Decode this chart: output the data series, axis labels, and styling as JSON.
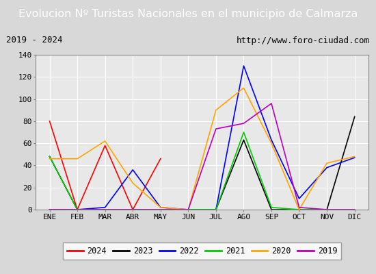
{
  "title": "Evolucion Nº Turistas Nacionales en el municipio de Calmarza",
  "subtitle_left": "2019 - 2024",
  "subtitle_right": "http://www.foro-ciudad.com",
  "months": [
    "ENE",
    "FEB",
    "MAR",
    "ABR",
    "MAY",
    "JUN",
    "JUL",
    "AGO",
    "SEP",
    "OCT",
    "NOV",
    "DIC"
  ],
  "ylim": [
    0,
    140
  ],
  "yticks": [
    0,
    20,
    40,
    60,
    80,
    100,
    120,
    140
  ],
  "series": {
    "2024": {
      "color": "#ff0000",
      "values": [
        80,
        0,
        58,
        0,
        46,
        null,
        null,
        null,
        null,
        null,
        null,
        null
      ]
    },
    "2023": {
      "color": "#000000",
      "values": [
        48,
        0,
        0,
        0,
        0,
        0,
        0,
        63,
        0,
        0,
        0,
        84
      ]
    },
    "2022": {
      "color": "#0000ff",
      "values": [
        0,
        0,
        2,
        36,
        2,
        0,
        0,
        130,
        63,
        10,
        38,
        47
      ]
    },
    "2021": {
      "color": "#00cc00",
      "values": [
        48,
        0,
        0,
        0,
        0,
        0,
        0,
        70,
        2,
        0,
        0,
        0
      ]
    },
    "2020": {
      "color": "#ffa500",
      "values": [
        46,
        46,
        62,
        24,
        2,
        0,
        90,
        110,
        60,
        0,
        42,
        48
      ]
    },
    "2019": {
      "color": "#bb00bb",
      "values": [
        0,
        0,
        0,
        0,
        0,
        0,
        73,
        78,
        96,
        2,
        0,
        0
      ]
    }
  },
  "title_bg_color": "#5b87c8",
  "title_text_color": "#ffffff",
  "subtitle_bg_color": "#ffffff",
  "plot_bg_color": "#e8e8e8",
  "fig_bg_color": "#c8c8c8",
  "outer_bg_color": "#d8d8d8",
  "grid_color": "#ffffff",
  "title_fontsize": 11.5,
  "subtitle_fontsize": 9,
  "tick_fontsize": 8,
  "legend_fontsize": 8.5,
  "legend_order": [
    "2024",
    "2023",
    "2022",
    "2021",
    "2020",
    "2019"
  ]
}
